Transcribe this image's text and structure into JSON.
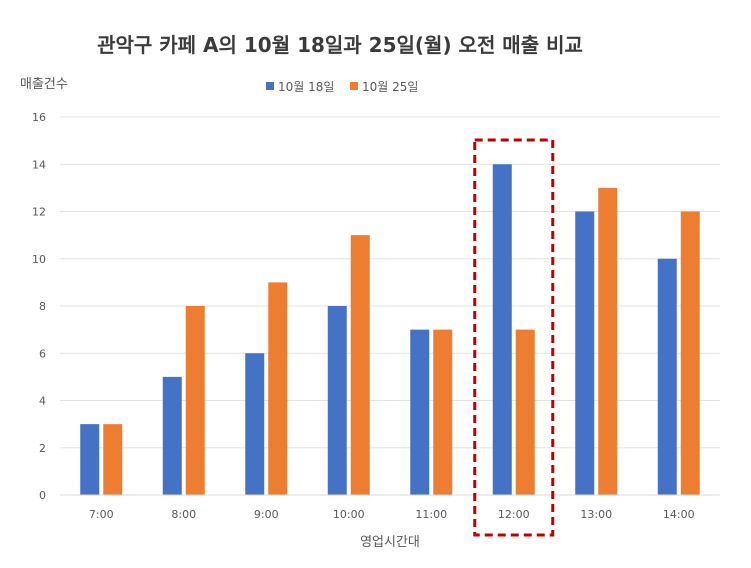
{
  "chart_data": {
    "type": "bar",
    "title": "관악구 카페 A의 10월 18일과 25일(월) 오전 매출 비교",
    "xlabel": "영업시간대",
    "ylabel": "매출건수",
    "categories": [
      "7:00",
      "8:00",
      "9:00",
      "10:00",
      "11:00",
      "12:00",
      "13:00",
      "14:00"
    ],
    "series": [
      {
        "name": "10월 18일",
        "color": "#4472C4",
        "values": [
          3,
          5,
          6,
          8,
          7,
          14,
          12,
          10
        ]
      },
      {
        "name": "10월 25일",
        "color": "#ED7D31",
        "values": [
          3,
          8,
          9,
          11,
          7,
          7,
          13,
          12
        ]
      }
    ],
    "ylim": [
      0,
      16
    ],
    "yticks": [
      0,
      2,
      4,
      6,
      8,
      10,
      12,
      14,
      16
    ],
    "grid": true,
    "legend_position": "top",
    "highlight": {
      "category": "12:00",
      "style": "dashed box",
      "color": "#C00000"
    }
  }
}
